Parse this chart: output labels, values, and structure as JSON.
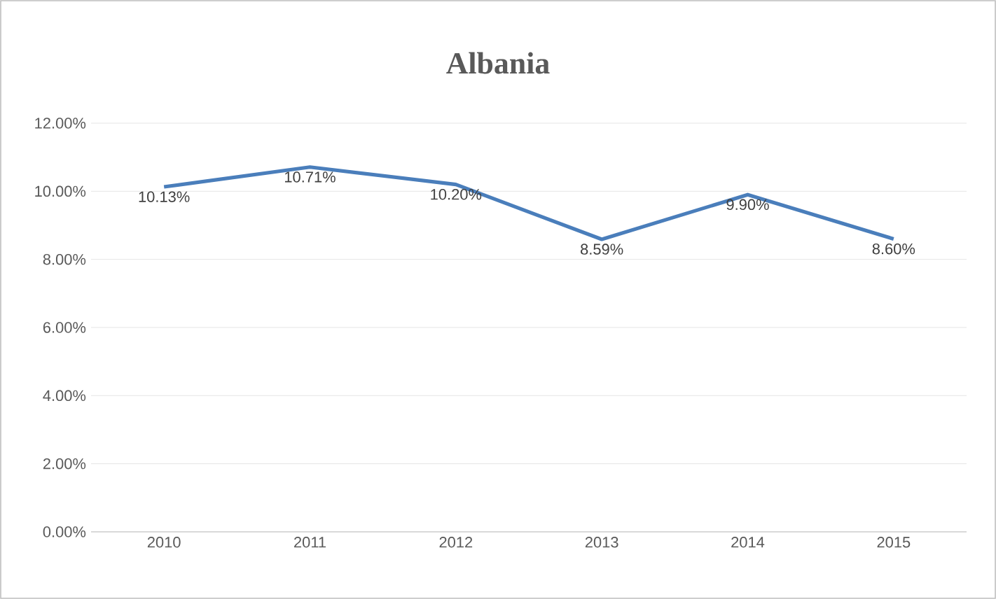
{
  "chart_data": {
    "type": "line",
    "title": "Albania",
    "categories": [
      "2010",
      "2011",
      "2012",
      "2013",
      "2014",
      "2015"
    ],
    "series": [
      {
        "color": "#4a7ebb",
        "values": [
          10.13,
          10.71,
          10.2,
          8.59,
          9.9,
          8.6
        ],
        "value_labels": [
          "10.13%",
          "10.71%",
          "10.20%",
          "8.59%",
          "9.90%",
          "8.60%"
        ]
      }
    ],
    "ylim": [
      0,
      12
    ],
    "yticks": [
      {
        "value": 0,
        "label": "0.00%"
      },
      {
        "value": 2,
        "label": "2.00%"
      },
      {
        "value": 4,
        "label": "4.00%"
      },
      {
        "value": 6,
        "label": "6.00%"
      },
      {
        "value": 8,
        "label": "8.00%"
      },
      {
        "value": 10,
        "label": "10.00%"
      },
      {
        "value": 12,
        "label": "12.00%"
      }
    ],
    "grid": "y",
    "marker": "none",
    "line_style": "solid"
  }
}
